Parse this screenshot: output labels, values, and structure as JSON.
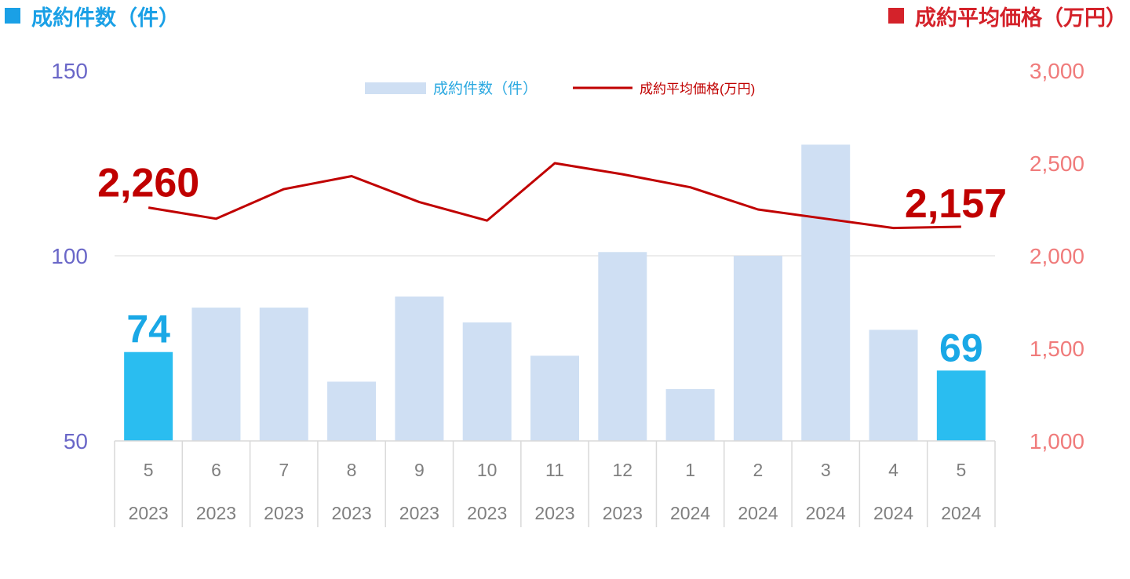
{
  "header": {
    "left_label": "成約件数（件）",
    "right_label": "成約平均価格（万円）",
    "left_color": "#1aa0e6",
    "right_color": "#d4222a"
  },
  "legend": {
    "bar_label": "成約件数（件）",
    "line_label": "成約平均価格(万円)"
  },
  "chart_data": {
    "type": "bar",
    "categories": [
      "5",
      "6",
      "7",
      "8",
      "9",
      "10",
      "11",
      "12",
      "1",
      "2",
      "3",
      "4",
      "5"
    ],
    "years": [
      "2023",
      "2023",
      "2023",
      "2023",
      "2023",
      "2023",
      "2023",
      "2023",
      "2024",
      "2024",
      "2024",
      "2024",
      "2024"
    ],
    "series": [
      {
        "name": "成約件数（件）",
        "type": "bar",
        "axis": "left",
        "values": [
          74,
          86,
          86,
          66,
          89,
          82,
          73,
          101,
          64,
          100,
          130,
          80,
          69
        ]
      },
      {
        "name": "成約平均価格(万円)",
        "type": "line",
        "axis": "right",
        "values": [
          2260,
          2200,
          2360,
          2430,
          2290,
          2190,
          2500,
          2440,
          2370,
          2250,
          2200,
          2150,
          2157
        ]
      }
    ],
    "left_axis": {
      "ylim": [
        50,
        150
      ],
      "ticks": [
        "50",
        "100",
        "150"
      ]
    },
    "right_axis": {
      "ylim": [
        1000,
        3000
      ],
      "ticks": [
        "1,000",
        "1,500",
        "2,000",
        "2,500",
        "3,000"
      ]
    },
    "highlight_indices": [
      0,
      12
    ],
    "annotations": {
      "first_count": "74",
      "last_count": "69",
      "first_price": "2,260",
      "last_price": "2,157"
    },
    "colors": {
      "bar": "#cfdff3",
      "bar_highlight": "#2abdf0",
      "line": "#c00000",
      "left_axis_text": "#6a67c8",
      "right_axis_text": "#f07b7b",
      "gridline": "#d9d9d9",
      "tick_text": "#7f7f7f",
      "legend_bar_text": "#2aa8e0",
      "legend_line_text": "#c00000",
      "count_label": "#1aa8e6",
      "price_label": "#c00000"
    },
    "grid": true,
    "legend_position": "top-center"
  }
}
